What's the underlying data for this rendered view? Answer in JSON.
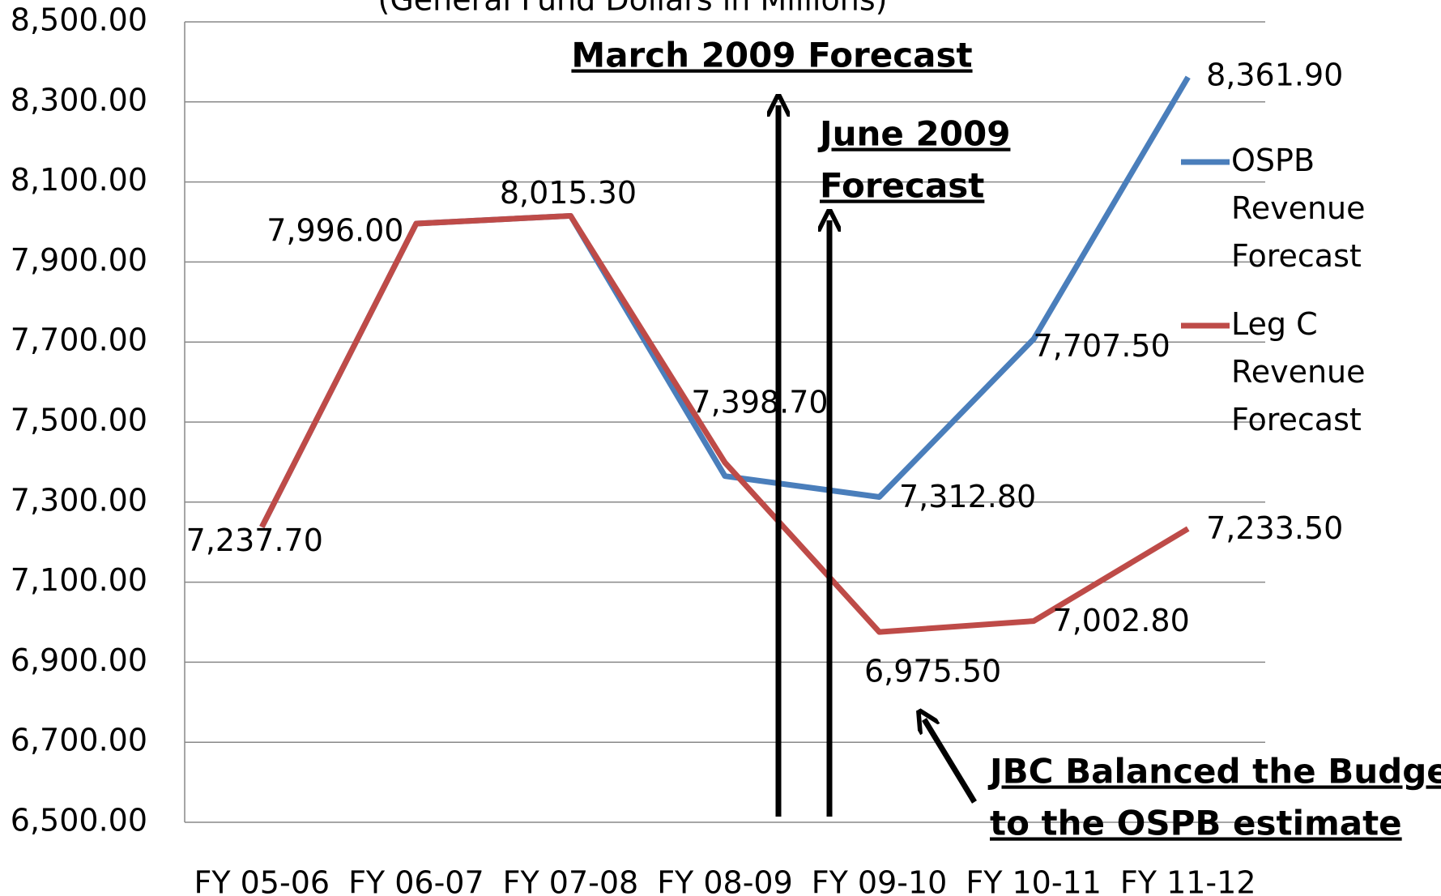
{
  "chart_data": {
    "type": "line",
    "subtitle": "(General Fund Dollars in Millions)",
    "categories": [
      "FY 05-06",
      "FY 06-07",
      "FY 07-08",
      "FY 08-09",
      "FY 09-10",
      "FY 10-11",
      "FY 11-12"
    ],
    "series": [
      {
        "name": "OSPB Revenue Forecast",
        "color": "#4a7ebb",
        "values": [
          7237.7,
          7996.0,
          8015.3,
          7365,
          7312.8,
          7707.5,
          8361.9
        ],
        "value_labels": [
          null,
          null,
          null,
          null,
          "7,312.80",
          "7,707.50",
          "8,361.90"
        ]
      },
      {
        "name": "Leg C Revenue Forecast",
        "color": "#be4b48",
        "values": [
          7237.7,
          7996.0,
          8015.3,
          7398.7,
          6975.5,
          7002.8,
          7233.5
        ],
        "value_labels": [
          "7,237.70",
          "7,996.00",
          "8,015.30",
          "7,398.70",
          "6,975.50",
          "7,002.80",
          "7,233.50"
        ]
      }
    ],
    "ylim": [
      6500,
      8500
    ],
    "yticks": [
      {
        "value": 6500,
        "label": "6,500.00"
      },
      {
        "value": 6700,
        "label": "6,700.00"
      },
      {
        "value": 6900,
        "label": "6,900.00"
      },
      {
        "value": 7100,
        "label": "7,100.00"
      },
      {
        "value": 7300,
        "label": "7,300.00"
      },
      {
        "value": 7500,
        "label": "7,500.00"
      },
      {
        "value": 7700,
        "label": "7,700.00"
      },
      {
        "value": 7900,
        "label": "7,900.00"
      },
      {
        "value": 8100,
        "label": "8,100.00"
      },
      {
        "value": 8300,
        "label": "8,300.00"
      },
      {
        "value": 8500,
        "label": "8,500.00"
      }
    ],
    "grid": true,
    "legend": "right",
    "annotations": [
      {
        "lines": [
          "March 2009 Forecast"
        ]
      },
      {
        "lines": [
          "June 2009",
          "Forecast"
        ]
      },
      {
        "lines": [
          "JBC Balanced the Budget",
          "to the OSPB estimate"
        ]
      }
    ]
  }
}
